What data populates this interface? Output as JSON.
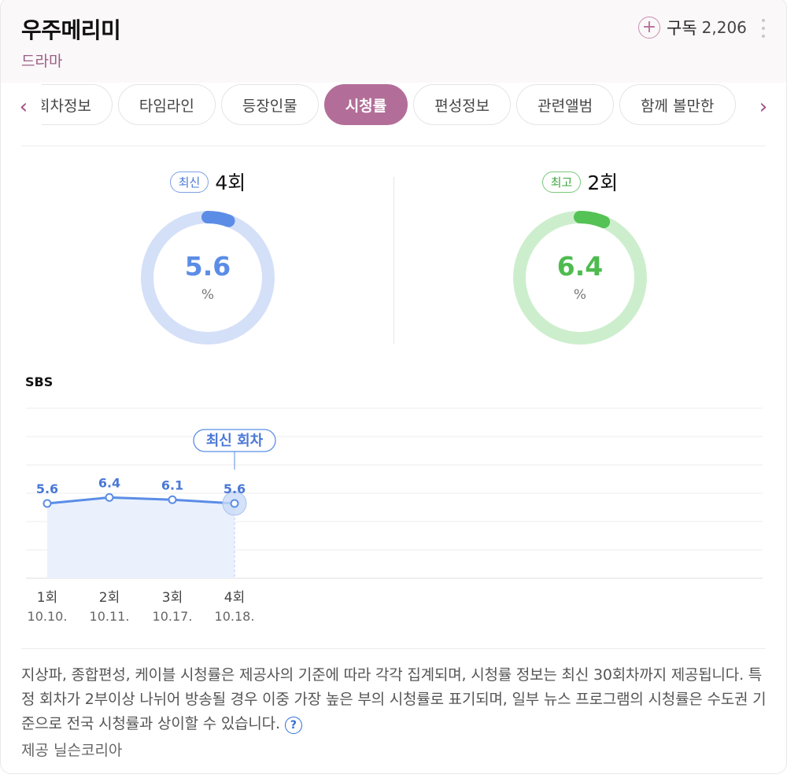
{
  "header": {
    "title": "우주메리미",
    "genre": "드라마",
    "subscribe_icon": "plus-icon",
    "subscribe_label": "구독",
    "subscribe_count": "2,206"
  },
  "tabs": [
    {
      "label": "회차정보",
      "active": false
    },
    {
      "label": "타임라인",
      "active": false
    },
    {
      "label": "등장인물",
      "active": false
    },
    {
      "label": "시청률",
      "active": true
    },
    {
      "label": "편성정보",
      "active": false
    },
    {
      "label": "관련앨범",
      "active": false
    },
    {
      "label": "함께 볼만한",
      "active": false
    }
  ],
  "latest": {
    "badge": "최신",
    "episode": "4회",
    "value": "5.6",
    "unit": "%",
    "fraction": 0.056,
    "color": "#5b8de6",
    "track": "#d4e0f8"
  },
  "highest": {
    "badge": "최고",
    "episode": "2회",
    "value": "6.4",
    "unit": "%",
    "fraction": 0.064,
    "color": "#55c255",
    "track": "#cdeecd"
  },
  "chart": {
    "broadcaster": "SBS",
    "callout": "최신 회차"
  },
  "chart_data": {
    "type": "line",
    "series": [
      {
        "name": "SBS",
        "values": [
          5.6,
          6.4,
          6.1,
          5.6
        ]
      }
    ],
    "categories": [
      "1회",
      "2회",
      "3회",
      "4회"
    ],
    "dates": [
      "10.10.",
      "10.11.",
      "10.17.",
      "10.18."
    ],
    "data_labels": [
      "5.6",
      "6.4",
      "6.1",
      "5.6"
    ],
    "highlighted_index": 3,
    "grid": true
  },
  "notice": {
    "text": "지상파, 종합편성, 케이블 시청률은 제공사의 기준에 따라 각각 집계되며, 시청률 정보는 최신 30회차까지 제공됩니다. 특정 회차가 2부이상 나뉘어 방송될 경우 이중 가장 높은 부의 시청률로 표기되며, 일부 뉴스 프로그램의 시청률은 수도권 기준으로 전국 시청률과 상이할 수 있습니다.",
    "help_icon": "?",
    "provider": "제공 닐슨코리아"
  }
}
